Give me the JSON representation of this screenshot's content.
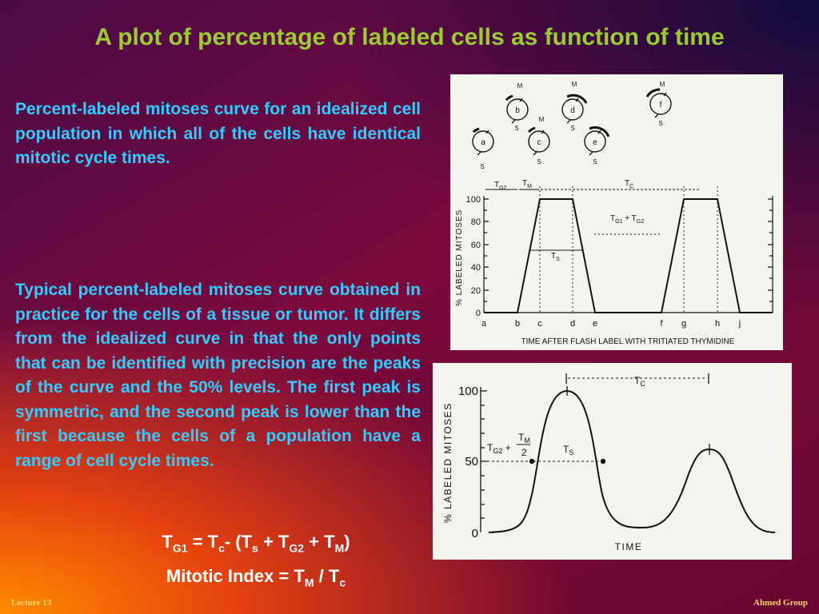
{
  "title": "A plot of percentage of labeled cells as function of time",
  "paragraph1": "Percent-labeled mitoses curve for an idealized cell population in which all of the cells have identical mitotic cycle times.",
  "paragraph2": "Typical percent-labeled mitoses curve obtained in practice for the cells of a tissue or tumor. It differs from the idealized curve in that the only points that can be identified with precision are the peaks of the curve and the 50% levels. The first peak is symmetric, and the second peak is lower than the first because the cells of a population have a range of cell cycle times.",
  "formula1": {
    "t": "T",
    "g1": "G1",
    "eq": " = T",
    "c": "c",
    "mid": "- (T",
    "s": "s",
    "plus1": " + T",
    "g2": "G2",
    "plus2": " + T",
    "m": "M",
    "close": ")"
  },
  "formula2": {
    "label": "Mitotic Index = T",
    "m": "M",
    "slash": " / T",
    "c": "c"
  },
  "footer": {
    "left": "Lecture 13",
    "right": "Ahmed Group"
  },
  "colors": {
    "title": "#9acd32",
    "body_text": "#33ccff",
    "formula": "#ffffff",
    "footer": "#ffd66b",
    "figure_bg": "#f5f5f0"
  },
  "figure1": {
    "cell_diagram_labels": {
      "cells": [
        "a",
        "b",
        "c",
        "d",
        "e",
        "f"
      ],
      "phase_m": "M",
      "phase_s": "S"
    },
    "y_axis_label": "% LABELED MITOSES",
    "y_ticks": [
      "100",
      "80",
      "60",
      "40",
      "20",
      "0"
    ],
    "x_ticks": [
      "a",
      "b",
      "c",
      "d",
      "e",
      "f",
      "g",
      "h",
      "j"
    ],
    "x_axis_label": "TIME AFTER FLASH LABEL WITH TRITIATED THYMIDINE",
    "annotations": {
      "tg2": "T",
      "tg2_sub": "G2",
      "tm": "T",
      "tm_sub": "M",
      "tc": "T",
      "tc_sub": "C",
      "ts": "T",
      "ts_sub": "S",
      "tg1": "T",
      "tg1_sub": "G1",
      "plus": " + T",
      "tg2b_sub": "G2"
    }
  },
  "figure2": {
    "y_axis_label": "% LABELED MITOSES",
    "y_ticks": [
      "100",
      "50",
      "0"
    ],
    "x_axis_label": "TIME",
    "annotations": {
      "tc": "T",
      "tc_sub": "C",
      "tg2": "T",
      "tg2_sub": "G2",
      "plus": " + ",
      "tm": "T",
      "tm_sub": "M",
      "denominator": "2",
      "ts": "T",
      "ts_sub": "S"
    }
  }
}
